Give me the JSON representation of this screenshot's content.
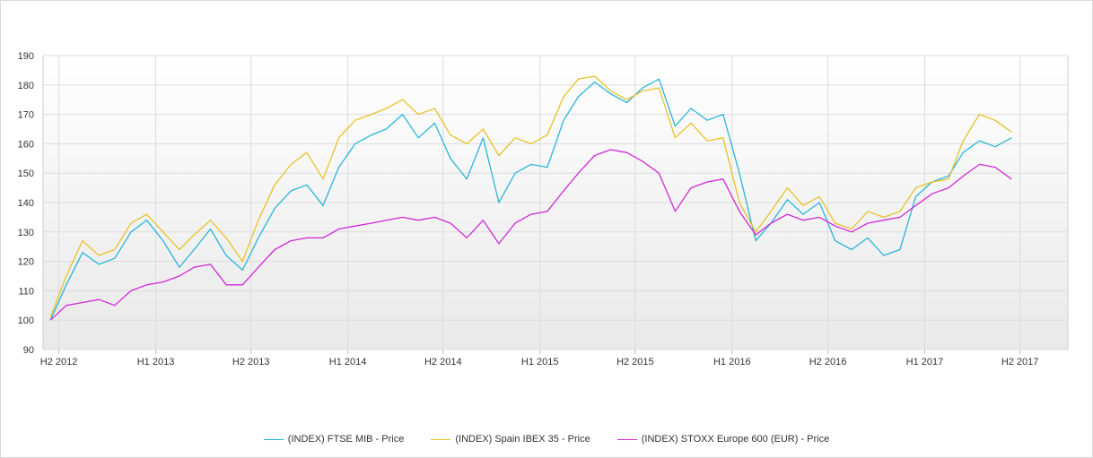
{
  "chart_data": {
    "type": "line",
    "title": "",
    "xlabel": "",
    "ylabel": "",
    "ylim": [
      90,
      190
    ],
    "y_ticks": [
      90,
      100,
      110,
      120,
      130,
      140,
      150,
      160,
      170,
      180,
      190
    ],
    "x_range": [
      "2012-06-01",
      "2017-09-30"
    ],
    "x_ticks": [
      {
        "label": "H2 2012",
        "date": "2012-07-01"
      },
      {
        "label": "H1 2013",
        "date": "2013-01-01"
      },
      {
        "label": "H2 2013",
        "date": "2013-07-01"
      },
      {
        "label": "H1 2014",
        "date": "2014-01-01"
      },
      {
        "label": "H2 2014",
        "date": "2014-07-01"
      },
      {
        "label": "H1 2015",
        "date": "2015-01-01"
      },
      {
        "label": "H2 2015",
        "date": "2015-07-01"
      },
      {
        "label": "H1 2016",
        "date": "2016-01-01"
      },
      {
        "label": "H2 2016",
        "date": "2016-07-01"
      },
      {
        "label": "H1 2017",
        "date": "2017-01-01"
      },
      {
        "label": "H2 2017",
        "date": "2017-07-01"
      }
    ],
    "grid": true,
    "legend_position": "bottom",
    "background": {
      "top": "#ffffff",
      "bottom": "#e9e9e9"
    },
    "x": [
      "2012-06-15",
      "2012-07-15",
      "2012-08-15",
      "2012-09-15",
      "2012-10-15",
      "2012-11-15",
      "2012-12-15",
      "2013-01-15",
      "2013-02-15",
      "2013-03-15",
      "2013-04-15",
      "2013-05-15",
      "2013-06-15",
      "2013-07-15",
      "2013-08-15",
      "2013-09-15",
      "2013-10-15",
      "2013-11-15",
      "2013-12-15",
      "2014-01-15",
      "2014-02-15",
      "2014-03-15",
      "2014-04-15",
      "2014-05-15",
      "2014-06-15",
      "2014-07-15",
      "2014-08-15",
      "2014-09-15",
      "2014-10-15",
      "2014-11-15",
      "2014-12-15",
      "2015-01-15",
      "2015-02-15",
      "2015-03-15",
      "2015-04-15",
      "2015-05-15",
      "2015-06-15",
      "2015-07-15",
      "2015-08-15",
      "2015-09-15",
      "2015-10-15",
      "2015-11-15",
      "2015-12-15",
      "2016-01-15",
      "2016-02-15",
      "2016-03-15",
      "2016-04-15",
      "2016-05-15",
      "2016-06-15",
      "2016-07-15",
      "2016-08-15",
      "2016-09-15",
      "2016-10-15",
      "2016-11-15",
      "2016-12-15",
      "2017-01-15",
      "2017-02-15",
      "2017-03-15",
      "2017-04-15",
      "2017-05-15",
      "2017-06-15"
    ],
    "series": [
      {
        "name": "(INDEX) FTSE MIB - Price",
        "color": "#29b6d9",
        "values": [
          100,
          112,
          123,
          119,
          121,
          130,
          134,
          127,
          118,
          124,
          131,
          122,
          117,
          128,
          138,
          144,
          146,
          139,
          152,
          160,
          163,
          165,
          170,
          162,
          167,
          155,
          148,
          162,
          140,
          150,
          153,
          152,
          168,
          176,
          181,
          177,
          174,
          179,
          182,
          166,
          172,
          168,
          170,
          150,
          127,
          133,
          141,
          136,
          140,
          127,
          124,
          128,
          122,
          124,
          142,
          147,
          149,
          157,
          161,
          159,
          162
        ]
      },
      {
        "name": "(INDEX) Spain IBEX 35 - Price",
        "color": "#e8c229",
        "values": [
          101,
          115,
          127,
          122,
          124,
          133,
          136,
          130,
          124,
          129,
          134,
          128,
          120,
          134,
          146,
          153,
          157,
          148,
          162,
          168,
          170,
          172,
          175,
          170,
          172,
          163,
          160,
          165,
          156,
          162,
          160,
          163,
          176,
          182,
          183,
          178,
          175,
          178,
          179,
          162,
          167,
          161,
          162,
          140,
          130,
          137,
          145,
          139,
          142,
          133,
          131,
          137,
          135,
          137,
          145,
          147,
          148,
          161,
          170,
          168,
          164
        ]
      },
      {
        "name": "(INDEX) STOXX Europe 600 (EUR) - Price",
        "color": "#d129d9",
        "values": [
          100,
          105,
          106,
          107,
          105,
          110,
          112,
          113,
          115,
          118,
          119,
          112,
          112,
          118,
          124,
          127,
          128,
          128,
          131,
          132,
          133,
          134,
          135,
          134,
          135,
          133,
          128,
          134,
          126,
          133,
          136,
          137,
          144,
          150,
          156,
          158,
          157,
          154,
          150,
          137,
          145,
          147,
          148,
          137,
          129,
          133,
          136,
          134,
          135,
          132,
          130,
          133,
          134,
          135,
          139,
          143,
          145,
          149,
          153,
          152,
          148
        ]
      }
    ]
  }
}
